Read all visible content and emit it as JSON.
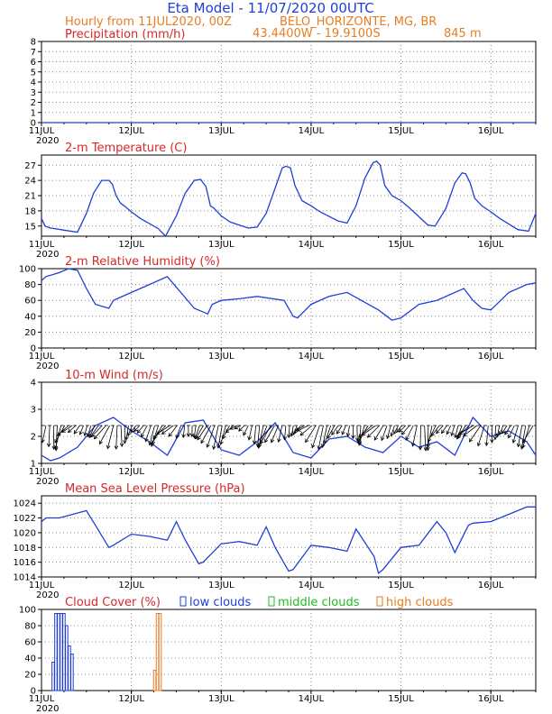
{
  "header": {
    "title": "Eta Model - 11/07/2020 00UTC",
    "line2_left": "Hourly from 11JUL2020, 00Z",
    "line2_right": "BELO_HORIZONTE, MG, BR",
    "coords": "43.4400W - 19.9100S",
    "elevation": "845  m"
  },
  "colors": {
    "line": "#1f3fd8",
    "title": "#d62828",
    "header": "#e67e22",
    "low": "#1f3fd8",
    "middle": "#22bb22",
    "high": "#e67e22"
  },
  "x_axis": {
    "ticks": [
      "11JUL",
      "12JUL",
      "13JUL",
      "14JUL",
      "15JUL",
      "16JUL"
    ],
    "year": "2020",
    "range_days": [
      0,
      5.5
    ]
  },
  "chart_data": [
    {
      "id": "precip",
      "type": "line",
      "title": "Precipitation (mm/h)",
      "ylim": [
        0,
        8
      ],
      "yticks": [
        0,
        1,
        2,
        3,
        4,
        5,
        6,
        7,
        8
      ],
      "x": [
        0,
        5.5
      ],
      "y": [
        0,
        0
      ]
    },
    {
      "id": "temp",
      "type": "line",
      "title": "2-m Temperature (C)",
      "ylim": [
        13,
        29
      ],
      "yticks": [
        15,
        18,
        21,
        24,
        27
      ],
      "x": [
        0,
        0.04,
        0.1,
        0.15,
        0.25,
        0.4,
        0.5,
        0.58,
        0.67,
        0.75,
        0.79,
        0.83,
        0.88,
        0.92,
        1.0,
        1.1,
        1.3,
        1.38,
        1.5,
        1.6,
        1.7,
        1.77,
        1.83,
        1.88,
        1.92,
        2.0,
        2.1,
        2.3,
        2.4,
        2.5,
        2.6,
        2.68,
        2.72,
        2.77,
        2.82,
        2.9,
        3.0,
        3.1,
        3.3,
        3.4,
        3.5,
        3.6,
        3.69,
        3.73,
        3.77,
        3.82,
        3.9,
        4.0,
        4.1,
        4.3,
        4.38,
        4.5,
        4.6,
        4.68,
        4.72,
        4.77,
        4.82,
        4.9,
        5.0,
        5.1,
        5.3,
        5.42,
        5.5
      ],
      "y": [
        16.5,
        15.0,
        14.6,
        14.5,
        14.2,
        13.8,
        17.5,
        21.5,
        24.0,
        24.0,
        23.2,
        21.0,
        19.5,
        19.0,
        17.8,
        16.5,
        14.5,
        13.0,
        17.0,
        21.5,
        24.0,
        24.2,
        22.8,
        19.0,
        18.5,
        17.0,
        15.8,
        14.6,
        14.8,
        17.5,
        22.5,
        26.5,
        26.8,
        26.5,
        23.0,
        20.0,
        19.0,
        17.8,
        16.0,
        15.6,
        19.0,
        24.5,
        27.5,
        27.8,
        27.0,
        23.0,
        21.0,
        20.0,
        18.5,
        15.2,
        15.0,
        18.5,
        23.5,
        25.5,
        25.3,
        23.5,
        20.5,
        19.0,
        17.8,
        16.5,
        14.3,
        14.0,
        17.5
      ]
    },
    {
      "id": "rh",
      "type": "line",
      "title": "2-m Relative Humidity (%)",
      "ylim": [
        0,
        100
      ],
      "yticks": [
        0,
        20,
        40,
        60,
        80,
        100
      ],
      "x": [
        0,
        0.05,
        0.2,
        0.3,
        0.4,
        0.5,
        0.6,
        0.75,
        0.8,
        1.0,
        1.2,
        1.4,
        1.7,
        1.85,
        1.9,
        2.0,
        2.2,
        2.4,
        2.7,
        2.8,
        2.85,
        3.0,
        3.2,
        3.4,
        3.75,
        3.9,
        4.0,
        4.2,
        4.4,
        4.7,
        4.8,
        4.9,
        5.0,
        5.2,
        5.4,
        5.5
      ],
      "y": [
        85,
        90,
        95,
        100,
        98,
        75,
        55,
        50,
        60,
        70,
        80,
        90,
        50,
        43,
        55,
        60,
        62,
        65,
        60,
        40,
        38,
        55,
        65,
        70,
        48,
        35,
        38,
        55,
        60,
        75,
        60,
        50,
        48,
        70,
        80,
        82
      ]
    },
    {
      "id": "wind",
      "type": "line",
      "title": "10-m Wind (m/s)",
      "ylim": [
        1,
        4
      ],
      "yticks": [
        1,
        2,
        3,
        4
      ],
      "x": [
        0,
        0.1,
        0.2,
        0.4,
        0.6,
        0.8,
        1.0,
        1.2,
        1.4,
        1.6,
        1.8,
        2.0,
        2.2,
        2.4,
        2.6,
        2.8,
        3.0,
        3.2,
        3.4,
        3.6,
        3.8,
        4.0,
        4.2,
        4.4,
        4.6,
        4.8,
        5.0,
        5.2,
        5.4,
        5.5
      ],
      "y": [
        1.3,
        1.1,
        1.2,
        1.6,
        2.4,
        2.7,
        2.2,
        1.8,
        1.3,
        2.5,
        2.6,
        1.5,
        1.3,
        1.8,
        2.5,
        1.4,
        1.2,
        1.9,
        2.0,
        1.6,
        1.4,
        2.0,
        1.6,
        1.8,
        1.3,
        2.7,
        2.0,
        2.2,
        1.8,
        1.3
      ],
      "arrow_row_ms": 2.4,
      "arrow_spacing_days": 0.0417
    },
    {
      "id": "mslp",
      "type": "line",
      "title": "Mean Sea Level Pressure (hPa)",
      "ylim": [
        1014,
        1025
      ],
      "yticks": [
        1014,
        1016,
        1018,
        1020,
        1022,
        1024
      ],
      "x": [
        0,
        0.05,
        0.2,
        0.5,
        0.6,
        0.75,
        0.8,
        1.0,
        1.2,
        1.4,
        1.5,
        1.6,
        1.75,
        1.8,
        2.0,
        2.2,
        2.4,
        2.5,
        2.6,
        2.75,
        2.8,
        3.0,
        3.2,
        3.4,
        3.5,
        3.7,
        3.75,
        3.8,
        4.0,
        4.2,
        4.4,
        4.5,
        4.6,
        4.75,
        4.8,
        5.0,
        5.2,
        5.4,
        5.5
      ],
      "y": [
        1021.5,
        1022.0,
        1022.0,
        1023.0,
        1021.0,
        1018.0,
        1018.3,
        1019.8,
        1019.5,
        1019.0,
        1021.5,
        1019.0,
        1015.8,
        1016.0,
        1018.5,
        1018.8,
        1018.3,
        1020.8,
        1018.0,
        1014.8,
        1015.0,
        1018.3,
        1018.0,
        1017.5,
        1020.5,
        1016.8,
        1014.5,
        1015.0,
        1018.0,
        1018.3,
        1021.5,
        1020.0,
        1017.3,
        1021.0,
        1021.3,
        1021.5,
        1022.5,
        1023.5,
        1023.5
      ]
    },
    {
      "id": "cloud",
      "type": "bar",
      "title": "Cloud Cover (%)",
      "legend": {
        "low": "low clouds",
        "middle": "middle clouds",
        "high": "high clouds"
      },
      "ylim": [
        0,
        100
      ],
      "yticks": [
        0,
        20,
        40,
        60,
        80,
        100
      ],
      "series": [
        {
          "name": "low",
          "x": [
            0.13,
            0.16,
            0.19,
            0.22,
            0.25,
            0.28,
            0.31,
            0.34
          ],
          "values": [
            35,
            95,
            95,
            95,
            95,
            80,
            55,
            45
          ]
        },
        {
          "name": "high",
          "x": [
            1.26,
            1.29,
            1.32
          ],
          "values": [
            25,
            95,
            95
          ]
        }
      ]
    }
  ]
}
